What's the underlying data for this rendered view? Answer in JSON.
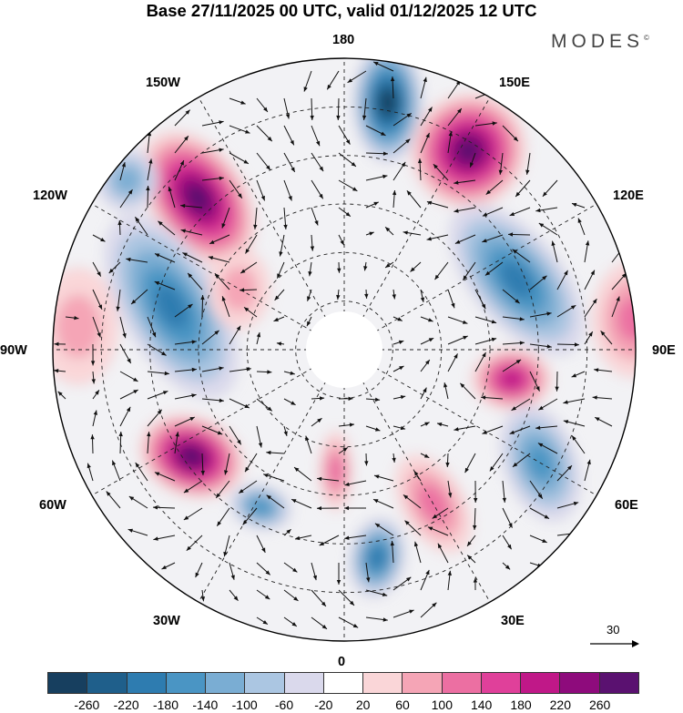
{
  "title": "Base 27/11/2025 00 UTC, valid 01/12/2025 12 UTC",
  "brand": "MODES",
  "brand_mark": "©",
  "longitude_labels": [
    "180",
    "150E",
    "120E",
    "90E",
    "60E",
    "30E",
    "0",
    "30W",
    "60W",
    "90W",
    "120W",
    "150W"
  ],
  "vector_scale_label": "30",
  "colorbar": {
    "ticks": [
      "-260",
      "-220",
      "-180",
      "-140",
      "-100",
      "-60",
      "-20",
      "20",
      "60",
      "100",
      "140",
      "180",
      "220",
      "260"
    ],
    "colors": [
      "#173f5f",
      "#1f5f8b",
      "#2e7cb0",
      "#4a95c4",
      "#7aadd3",
      "#abc6e2",
      "#dad9ec",
      "#ffffff",
      "#fad6d8",
      "#f5a5b6",
      "#ec6fa2",
      "#e0409a",
      "#c01888",
      "#8e0b7c",
      "#5a1170"
    ]
  },
  "anomalies": [
    {
      "name": "low-180",
      "lon": 170,
      "colat": 62,
      "value": -240,
      "sx": 34,
      "sy": 62,
      "rot": 0
    },
    {
      "name": "high-160e",
      "lon": 148,
      "colat": 58,
      "value": 250,
      "sx": 60,
      "sy": 58,
      "rot": -40
    },
    {
      "name": "high-140w",
      "lon": -136,
      "colat": 52,
      "value": 250,
      "sx": 48,
      "sy": 78,
      "rot": -35
    },
    {
      "name": "low-110w",
      "lon": -104,
      "colat": 44,
      "value": -170,
      "sx": 50,
      "sy": 108,
      "rot": -30
    },
    {
      "name": "low-130w",
      "lon": -128,
      "colat": 68,
      "value": -110,
      "sx": 30,
      "sy": 30,
      "rot": 0
    },
    {
      "name": "low-110e",
      "lon": 112,
      "colat": 46,
      "value": -160,
      "sx": 45,
      "sy": 95,
      "rot": -40
    },
    {
      "name": "high-95e",
      "lon": 96,
      "colat": 72,
      "value": 90,
      "sx": 42,
      "sy": 60,
      "rot": 0
    },
    {
      "name": "high-75e",
      "lon": 80,
      "colat": 42,
      "value": 160,
      "sx": 40,
      "sy": 30,
      "rot": 0
    },
    {
      "name": "low-60e",
      "lon": 60,
      "colat": 56,
      "value": -140,
      "sx": 36,
      "sy": 62,
      "rot": -20
    },
    {
      "name": "high-50w",
      "lon": -55,
      "colat": 46,
      "value": 240,
      "sx": 55,
      "sy": 40,
      "rot": 20
    },
    {
      "name": "low-30w",
      "lon": -28,
      "colat": 44,
      "value": -120,
      "sx": 30,
      "sy": 20,
      "rot": 15
    },
    {
      "name": "low-10e",
      "lon": 9,
      "colat": 52,
      "value": -180,
      "sx": 26,
      "sy": 40,
      "rot": 10
    },
    {
      "name": "high-5w",
      "lon": -4,
      "colat": 30,
      "value": 90,
      "sx": 14,
      "sy": 40,
      "rot": 0
    },
    {
      "name": "high-40e",
      "lon": 30,
      "colat": 44,
      "value": 80,
      "sx": 30,
      "sy": 55,
      "rot": -30
    },
    {
      "name": "high-95w",
      "lon": -95,
      "colat": 66,
      "value": 60,
      "sx": 40,
      "sy": 60,
      "rot": 0
    },
    {
      "name": "high-115w",
      "lon": -120,
      "colat": 30,
      "value": 50,
      "sx": 30,
      "sy": 40,
      "rot": 0
    }
  ]
}
